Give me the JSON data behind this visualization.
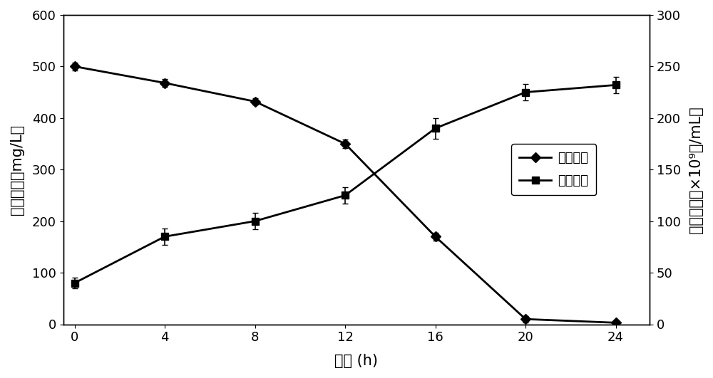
{
  "x": [
    0,
    4,
    8,
    12,
    16,
    20,
    24
  ],
  "uric_acid": [
    500,
    468,
    432,
    350,
    170,
    10,
    3
  ],
  "uric_acid_err": [
    8,
    7,
    6,
    8,
    8,
    6,
    3
  ],
  "cell_conc": [
    40,
    85,
    100,
    125,
    190,
    225,
    232
  ],
  "cell_conc_err": [
    5,
    8,
    8,
    8,
    10,
    8,
    8
  ],
  "xlabel": "时间 (h)",
  "ylabel_left": "尿酸浓度（mg/L）",
  "ylabel_right": "细胞浓度（×10⁹个/mL）",
  "legend_uric": "尿酸浓度",
  "legend_cell": "细胞浓度",
  "ylim_left": [
    0,
    600
  ],
  "ylim_right": [
    0,
    300
  ],
  "yticks_left": [
    0,
    100,
    200,
    300,
    400,
    500,
    600
  ],
  "yticks_right": [
    0,
    50,
    100,
    150,
    200,
    250,
    300
  ],
  "xticks": [
    0,
    4,
    8,
    12,
    16,
    20,
    24
  ],
  "line_color": "#000000",
  "bg_color": "#ffffff",
  "marker_uric": "D",
  "marker_cell": "s",
  "markersize": 7,
  "linewidth": 2.0,
  "fontsize_label": 15,
  "fontsize_tick": 13,
  "fontsize_legend": 13,
  "xlim": [
    -0.5,
    25.5
  ]
}
